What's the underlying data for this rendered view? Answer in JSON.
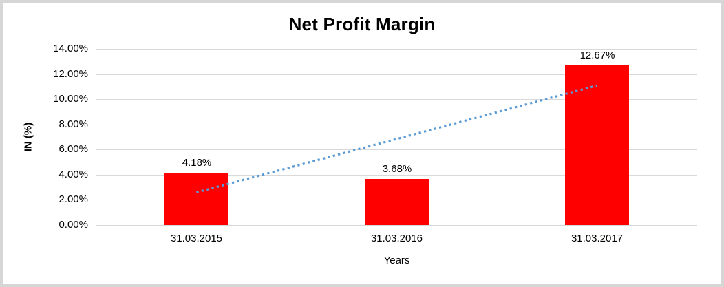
{
  "chart_data": {
    "type": "bar",
    "title": "Net Profit Margin",
    "categories": [
      "31.03.2015",
      "31.03.2016",
      "31.03.2017"
    ],
    "values": [
      4.18,
      3.68,
      12.67
    ],
    "value_labels": [
      "4.18%",
      "3.68%",
      "12.67%"
    ],
    "xlabel": "Years",
    "ylabel": "IN (%)",
    "ylim": [
      0,
      14
    ],
    "y_ticks": [
      0,
      2,
      4,
      6,
      8,
      10,
      12,
      14
    ],
    "y_tick_labels": [
      "0.00%",
      "2.00%",
      "4.00%",
      "6.00%",
      "8.00%",
      "10.00%",
      "12.00%",
      "14.00%"
    ],
    "grid": true,
    "legend": "none",
    "bar_color": "#FF0000",
    "trendline": {
      "type": "linear",
      "style": "dotted",
      "color": "#5B9BD5"
    }
  },
  "colors": {
    "background": "#FFFFFF",
    "frame_border": "#D6D6D6",
    "gridline": "#D9D9D9",
    "text": "#000000",
    "bar": "#FF0000",
    "trendline": "#5B9BD5"
  }
}
